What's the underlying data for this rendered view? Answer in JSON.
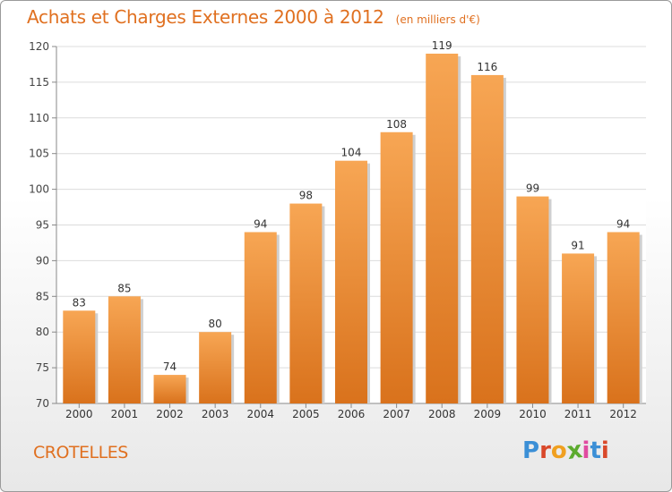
{
  "header": {
    "title": "Achats et Charges Externes 2000 à 2012",
    "subtitle": "(en milliers d'€)"
  },
  "footer": {
    "commune": "CROTELLES",
    "logo_text": "Proxiti"
  },
  "colors": {
    "bar_light": "#f7a654",
    "bar_dark": "#d9721c",
    "title": "#e07020",
    "logo_letters": [
      "#3b8fd6",
      "#d9482a",
      "#f0a020",
      "#5cab2e",
      "#e04aa0",
      "#3b8fd6",
      "#d9482a"
    ]
  },
  "chart_data": {
    "type": "bar",
    "title": "Achats et Charges Externes 2000 à 2012",
    "subtitle": "(en milliers d'€)",
    "categories": [
      "2000",
      "2001",
      "2002",
      "2003",
      "2004",
      "2005",
      "2006",
      "2007",
      "2008",
      "2009",
      "2010",
      "2011",
      "2012"
    ],
    "values": [
      83,
      85,
      74,
      80,
      94,
      98,
      104,
      108,
      119,
      116,
      99,
      91,
      94
    ],
    "ylim": [
      70,
      120
    ],
    "yticks": [
      70,
      75,
      80,
      85,
      90,
      95,
      100,
      105,
      110,
      115,
      120
    ],
    "grid": true,
    "data_labels": true
  }
}
